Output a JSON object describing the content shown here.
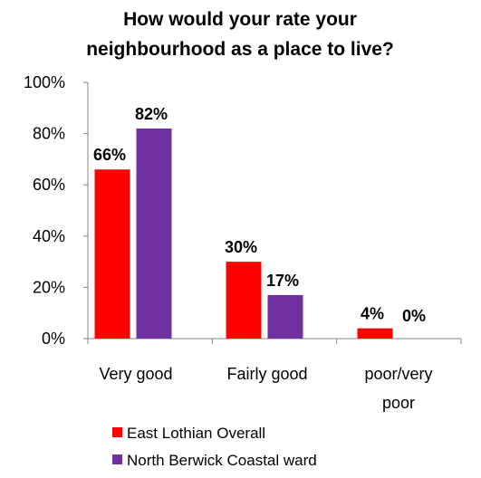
{
  "chart_data": {
    "type": "bar",
    "title_lines": [
      "How would your rate your",
      "neighbourhood as a place to live?"
    ],
    "categories": [
      "Very good",
      "Fairly good",
      "poor/very poor"
    ],
    "category_label_lines": [
      [
        "Very good"
      ],
      [
        "Fairly good"
      ],
      [
        "poor/very",
        "poor"
      ]
    ],
    "series": [
      {
        "name": "East Lothian Overall",
        "values": [
          66,
          30,
          4
        ],
        "labels": [
          "66%",
          "30%",
          "4%"
        ],
        "color": "#ff0000"
      },
      {
        "name": "North Berwick Coastal ward",
        "values": [
          82,
          17,
          0
        ],
        "labels": [
          "82%",
          "17%",
          "0%"
        ],
        "color": "#7030a0"
      }
    ],
    "ylim": [
      0,
      100
    ],
    "yticks": [
      0,
      20,
      40,
      60,
      80,
      100
    ],
    "ytick_labels": [
      "0%",
      "20%",
      "40%",
      "60%",
      "80%",
      "100%"
    ],
    "grid": false,
    "legend_position": "bottom"
  }
}
